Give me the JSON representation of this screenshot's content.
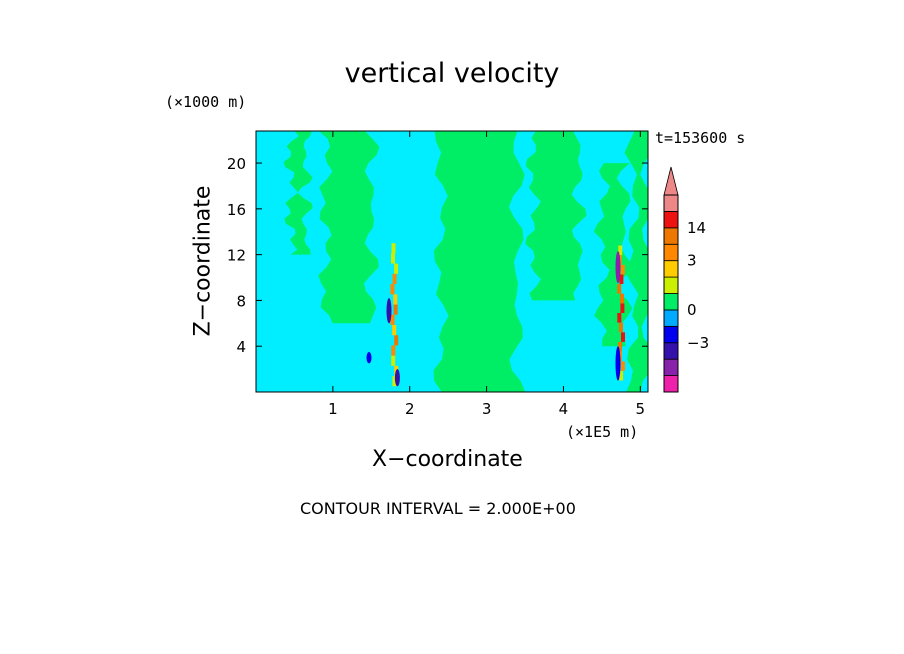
{
  "chart_data": {
    "type": "heatmap",
    "title": "vertical velocity",
    "xlabel": "X−coordinate",
    "ylabel": "Z−coordinate",
    "x_unit": "(×1E5 m)",
    "y_unit": "(×1000 m)",
    "time_label": "t=153600 s",
    "contour_interval_label": "CONTOUR INTERVAL = 2.000E+00",
    "xlim": [
      0,
      5.1
    ],
    "ylim": [
      0,
      22.8
    ],
    "x_ticks": [
      1,
      2,
      3,
      4,
      5
    ],
    "y_ticks": [
      4,
      8,
      12,
      16,
      20
    ],
    "x_tick_labels": [
      "1",
      "2",
      "3",
      "4",
      "5"
    ],
    "y_tick_labels": [
      "4",
      "8",
      "12",
      "16",
      "20"
    ],
    "colorbar": {
      "tick_labels": [
        "14",
        "3",
        "0",
        "−3"
      ],
      "tick_values": [
        14,
        3,
        0,
        -3
      ],
      "levels": [
        {
          "lo": -20,
          "hi": -9,
          "color": "#ee22aa"
        },
        {
          "lo": -9,
          "hi": -5,
          "color": "#8822aa"
        },
        {
          "lo": -5,
          "hi": -3,
          "color": "#3311aa"
        },
        {
          "lo": -3,
          "hi": -1,
          "color": "#0000ee"
        },
        {
          "lo": -1,
          "hi": 0,
          "color": "#00aaff"
        },
        {
          "lo": 0,
          "hi": 1,
          "color": "#00ee66"
        },
        {
          "lo": 1,
          "hi": 2,
          "color": "#ccee00"
        },
        {
          "lo": 2,
          "hi": 3,
          "color": "#ffcc00"
        },
        {
          "lo": 3,
          "hi": 5,
          "color": "#ff8800"
        },
        {
          "lo": 5,
          "hi": 9,
          "color": "#ee7700"
        },
        {
          "lo": 9,
          "hi": 16,
          "color": "#ee1111"
        },
        {
          "lo": 16,
          "hi": 20,
          "color": "#ee8888"
        }
      ]
    },
    "field": {
      "background_color": "#00eeff",
      "positive_color": "#00ee66",
      "green_bands": [
        {
          "x0": 0.45,
          "x1": 0.65,
          "z0": 12,
          "z1": 22.8
        },
        {
          "x0": 0.9,
          "x1": 1.5,
          "z0": 6,
          "z1": 22.8
        },
        {
          "x0": 2.4,
          "x1": 3.4,
          "z0": 0,
          "z1": 22.8
        },
        {
          "x0": 3.6,
          "x1": 4.2,
          "z0": 8,
          "z1": 22.8
        },
        {
          "x0": 4.5,
          "x1": 4.8,
          "z0": 4,
          "z1": 20
        },
        {
          "x0": 4.9,
          "x1": 5.1,
          "z0": 0,
          "z1": 22.8
        }
      ],
      "updrafts": [
        {
          "x": 1.8,
          "z0": 0.5,
          "z1": 13.0,
          "peak": 7
        },
        {
          "x": 4.75,
          "z0": 1.0,
          "z1": 12.8,
          "peak": 14
        }
      ],
      "downdrafts": [
        {
          "x": 1.73,
          "z0": 6.0,
          "z1": 8.2,
          "value": -4
        },
        {
          "x": 1.84,
          "z0": 0.5,
          "z1": 2.0,
          "value": -4
        },
        {
          "x": 1.47,
          "z0": 2.5,
          "z1": 3.5,
          "value": -2
        },
        {
          "x": 4.71,
          "z0": 9.5,
          "z1": 12.3,
          "value": -8
        },
        {
          "x": 4.71,
          "z0": 1.0,
          "z1": 4.0,
          "value": -3
        }
      ]
    }
  }
}
